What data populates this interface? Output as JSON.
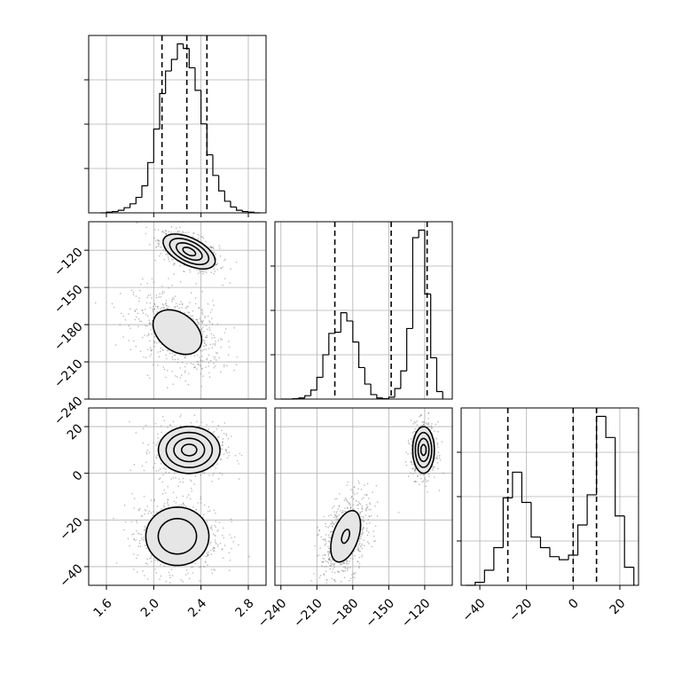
{
  "figure": {
    "type": "corner-plot",
    "grid": true,
    "colors": {
      "ink": "#000000",
      "grid": "#b0b0b0",
      "points": "#7a7a7a",
      "fill_light": "#e6e6e6",
      "fill_mid": "#bdbdbd",
      "fill_dark": "#7f7f7f",
      "fill_max": "#3a3a3a"
    }
  },
  "chart_data": [
    {
      "type": "histogram",
      "panel": "p0_marginal",
      "variable": "p0",
      "bins": [
        1.55,
        1.6,
        1.65,
        1.7,
        1.75,
        1.8,
        1.85,
        1.9,
        1.95,
        2.0,
        2.05,
        2.1,
        2.15,
        2.2,
        2.25,
        2.3,
        2.35,
        2.4,
        2.45,
        2.5,
        2.55,
        2.6,
        2.65,
        2.7,
        2.75,
        2.8,
        2.85,
        2.9
      ],
      "counts": [
        0,
        1,
        2,
        4,
        8,
        14,
        24,
        42,
        78,
        130,
        185,
        220,
        238,
        262,
        255,
        225,
        190,
        138,
        90,
        58,
        34,
        18,
        9,
        4,
        2,
        1,
        0
      ],
      "quantile_lines": [
        2.07,
        2.28,
        2.45
      ],
      "xlim": [
        1.45,
        2.95
      ],
      "xticks": [
        1.6,
        2.0,
        2.4,
        2.8
      ]
    },
    {
      "type": "contour",
      "panel": "p1_vs_p0",
      "x_variable": "p0",
      "y_variable": "p1",
      "modes": [
        {
          "center_x": 2.3,
          "center_y": -121,
          "sigma_x": 0.11,
          "sigma_y": 7,
          "correlation": -0.55,
          "weight": 0.5
        },
        {
          "center_x": 2.2,
          "center_y": -186,
          "sigma_x": 0.16,
          "sigma_y": 14,
          "correlation": -0.35,
          "weight": 0.5
        }
      ],
      "xlim": [
        1.45,
        2.95
      ],
      "ylim": [
        -240,
        -97
      ],
      "yticks": [
        -240,
        -210,
        -180,
        -150,
        -120
      ],
      "y_tick_labels": [
        "−240",
        "−210",
        "−180",
        "−150",
        "−120"
      ]
    },
    {
      "type": "contour",
      "panel": "p2_vs_p0",
      "x_variable": "p0",
      "y_variable": "p2",
      "modes": [
        {
          "center_x": 2.3,
          "center_y": 10,
          "sigma_x": 0.13,
          "sigma_y": 5,
          "correlation": 0.0,
          "weight": 0.5
        },
        {
          "center_x": 2.2,
          "center_y": -27,
          "sigma_x": 0.16,
          "sigma_y": 7.5,
          "correlation": 0.0,
          "weight": 0.5
        }
      ],
      "xlim": [
        1.45,
        2.95
      ],
      "ylim": [
        -48,
        28
      ],
      "xticks": [
        1.6,
        2.0,
        2.4,
        2.8
      ],
      "x_tick_labels": [
        "1.6",
        "2.0",
        "2.4",
        "2.8"
      ],
      "yticks": [
        -40,
        -20,
        0,
        20
      ],
      "y_tick_labels": [
        "−40",
        "−20",
        "0",
        "20"
      ]
    },
    {
      "type": "histogram",
      "panel": "p1_marginal",
      "variable": "p1",
      "bins": [
        -240,
        -235,
        -230,
        -225,
        -220,
        -215,
        -210,
        -205,
        -200,
        -195,
        -190,
        -185,
        -180,
        -175,
        -170,
        -165,
        -160,
        -155,
        -150,
        -145,
        -140,
        -135,
        -130,
        -125,
        -120,
        -115,
        -110,
        -105
      ],
      "counts": [
        0,
        0,
        1,
        3,
        9,
        24,
        58,
        118,
        175,
        178,
        230,
        208,
        152,
        84,
        40,
        12,
        3,
        1,
        5,
        28,
        75,
        188,
        430,
        450,
        280,
        110,
        20
      ],
      "quantile_lines": [
        -195,
        -148,
        -118
      ],
      "xlim": [
        -245,
        -97
      ]
    },
    {
      "type": "contour",
      "panel": "p2_vs_p1",
      "x_variable": "p1",
      "y_variable": "p2",
      "modes": [
        {
          "center_x": -121,
          "center_y": 10,
          "sigma_x": 4.5,
          "sigma_y": 5,
          "correlation": 0.0,
          "weight": 0.5
        },
        {
          "center_x": -186,
          "center_y": -27,
          "sigma_x": 9,
          "sigma_y": 8,
          "correlation": 0.45,
          "weight": 0.5
        }
      ],
      "xlim": [
        -245,
        -97
      ],
      "ylim": [
        -48,
        28
      ],
      "xticks": [
        -240,
        -210,
        -180,
        -150,
        -120
      ],
      "x_tick_labels": [
        "−240",
        "−210",
        "−180",
        "−150",
        "−120"
      ]
    },
    {
      "type": "histogram",
      "panel": "p2_marginal",
      "variable": "p2",
      "bins": [
        -46,
        -42,
        -38,
        -34,
        -30,
        -26,
        -22,
        -18,
        -14,
        -10,
        -6,
        -2,
        2,
        6,
        10,
        14,
        18,
        22,
        26
      ],
      "counts": [
        0,
        2,
        10,
        25,
        58,
        75,
        55,
        32,
        25,
        19,
        17,
        20,
        40,
        60,
        112,
        98,
        46,
        12,
        2
      ],
      "quantile_lines": [
        -28,
        0,
        10
      ],
      "xlim": [
        -48,
        28
      ],
      "xticks": [
        -40,
        -20,
        0,
        20
      ],
      "x_tick_labels": [
        "−40",
        "−20",
        "0",
        "20"
      ]
    }
  ]
}
